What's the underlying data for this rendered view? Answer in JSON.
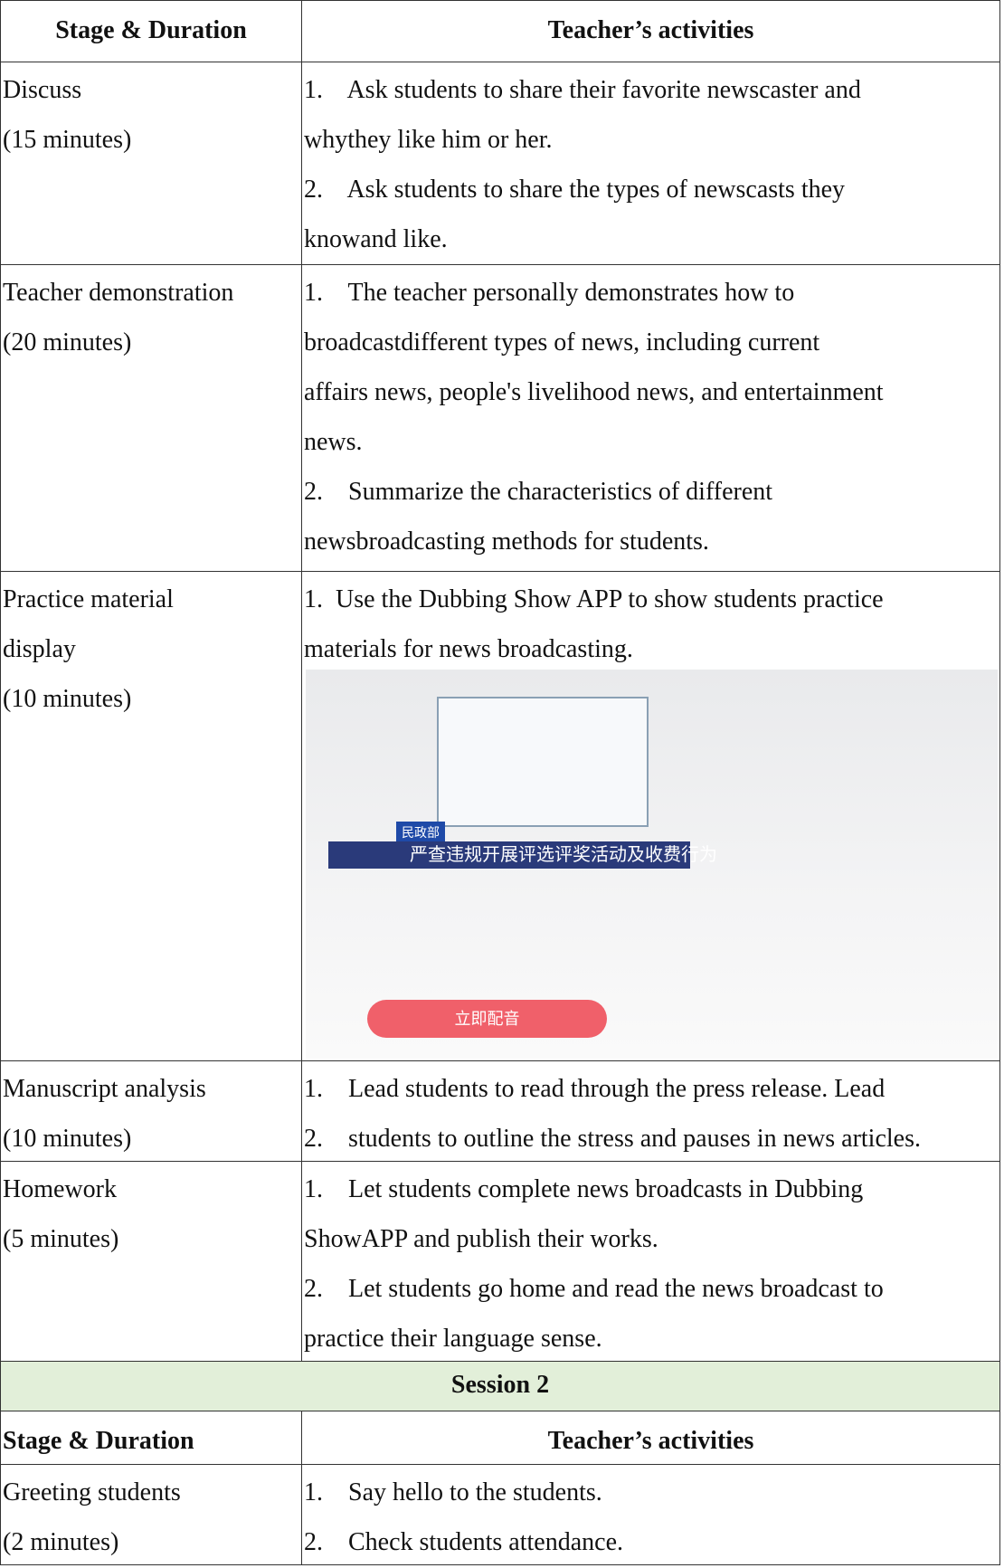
{
  "table": {
    "header": [
      "Stage & Duration",
      "Teacher’s activities"
    ],
    "rows": [
      {
        "stage": [
          "Discuss",
          "(15 minutes)"
        ],
        "activities": [
          "1.    Ask students to share their favorite newscaster and",
          "whythey like him or her.",
          "2.    Ask students to share the types of newscasts they",
          "knowand like."
        ]
      },
      {
        "stage": [
          "Teacher demonstration",
          "(20 minutes)"
        ],
        "activities": [
          "1.    The teacher personally demonstrates how to",
          "broadcastdifferent types of news, including current",
          "affairs news, people's livelihood news, and entertainment",
          "news.",
          "2.    Summarize the characteristics of different",
          "newsbroadcasting methods for students."
        ]
      },
      {
        "stage": [
          "Practice material",
          "display",
          "(10 minutes)"
        ],
        "activities": [
          "1.  Use the Dubbing Show APP to show students practice",
          "materials for news broadcasting."
        ],
        "image": {
          "tag": "民政部",
          "headline": "严查违规开展评选评奖活动及收费行为",
          "button": "立即配音"
        }
      },
      {
        "stage": [
          "Manuscript analysis",
          "(10 minutes)"
        ],
        "activities": [
          "1.    Lead students to read through the press release. Lead",
          "2.    students to outline the stress and pauses in news articles."
        ]
      },
      {
        "stage": [
          "Homework",
          "(5 minutes)"
        ],
        "activities": [
          "1.    Let students complete news broadcasts in Dubbing",
          "ShowAPP and publish their works.",
          "2.    Let students go home and read the news broadcast to",
          "practice their language sense."
        ]
      }
    ],
    "session": "Session 2",
    "header2": [
      "Stage & Duration",
      "Teacher’s activities"
    ],
    "rows2": [
      {
        "stage": [
          "Greeting students",
          "(2 minutes)"
        ],
        "activities": [
          "1.    Say hello to the students.",
          "2.    Check students attendance."
        ]
      }
    ]
  }
}
